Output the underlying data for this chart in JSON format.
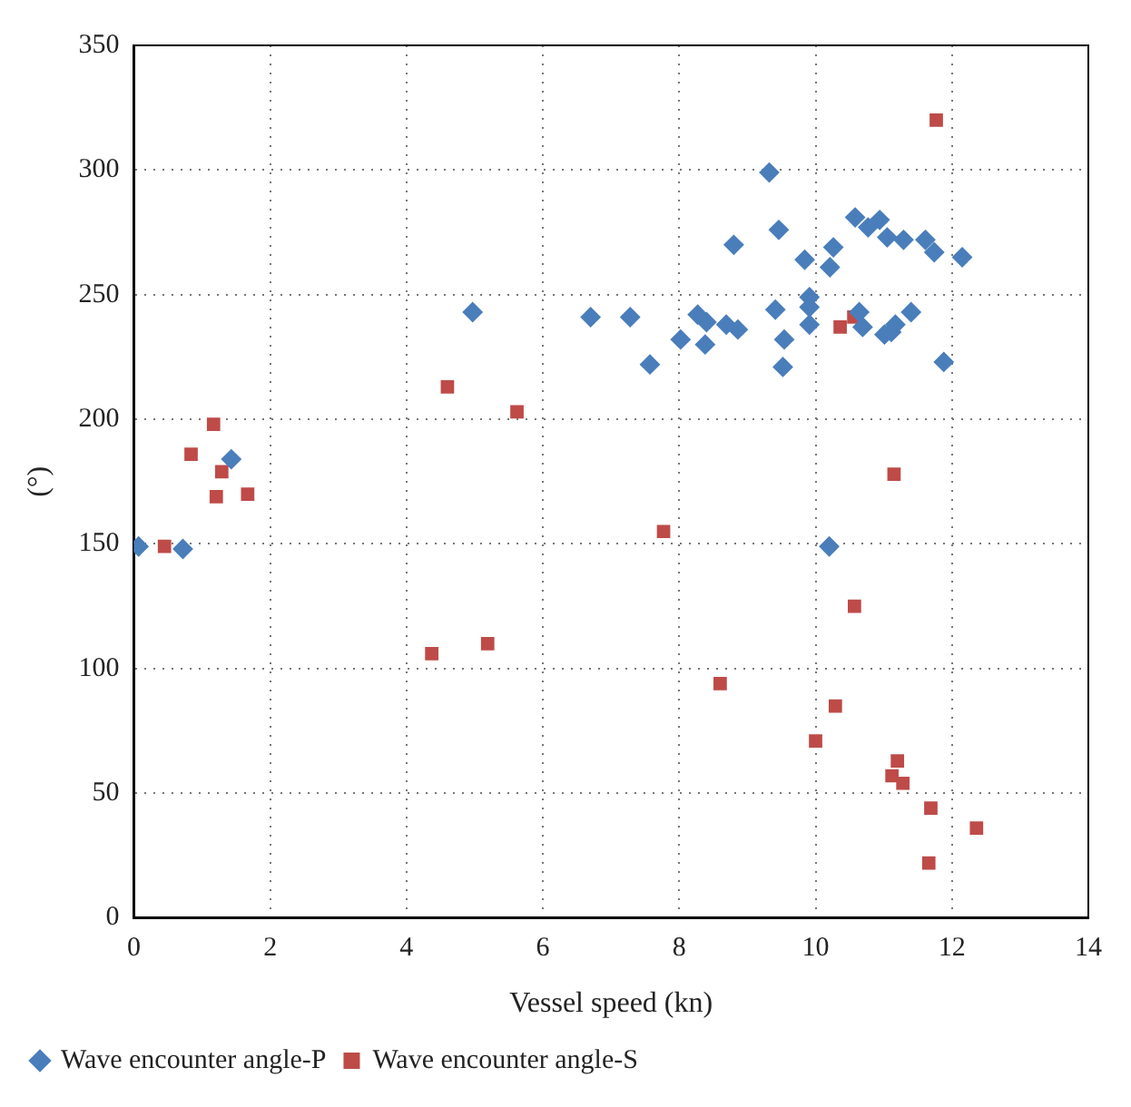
{
  "chart_data": {
    "type": "scatter",
    "xlabel": "Vessel speed (kn)",
    "ylabel": "(°)",
    "xlim": [
      0,
      14
    ],
    "xticks": [
      0,
      2,
      4,
      6,
      8,
      10,
      12,
      14
    ],
    "ylim": [
      0,
      350
    ],
    "yticks": [
      0,
      50,
      100,
      150,
      200,
      250,
      300,
      350
    ],
    "grid": true,
    "legend": "bottom",
    "series": [
      {
        "name": "Wave encounter angle-P",
        "color": "#4a7ebb",
        "marker": "diamond",
        "x": [
          0.07,
          0.72,
          1.43,
          4.97,
          6.7,
          7.28,
          7.57,
          8.02,
          8.27,
          8.4,
          8.38,
          8.69,
          8.8,
          8.86,
          9.32,
          9.41,
          9.46,
          9.52,
          9.54,
          9.84,
          9.91,
          9.91,
          9.91,
          10.21,
          10.26,
          10.2,
          10.58,
          10.64,
          10.69,
          10.73,
          10.77,
          10.94,
          11.01,
          11.05,
          11.11,
          11.17,
          11.29,
          11.4,
          11.61,
          11.74,
          11.88,
          12.15
        ],
        "values": [
          149,
          148,
          184,
          243,
          241,
          241,
          222,
          232,
          242,
          239,
          230,
          238,
          270,
          236,
          299,
          244,
          276,
          221,
          232,
          264,
          249,
          245,
          238,
          261,
          269,
          149,
          281,
          243,
          237,
          null,
          277,
          280,
          234,
          273,
          235,
          238,
          272,
          243,
          272,
          267,
          223,
          265
        ]
      },
      {
        "name": "Wave encounter angle-S",
        "color": "#be4b48",
        "marker": "square",
        "x": [
          0.45,
          0.84,
          1.17,
          1.21,
          1.29,
          1.67,
          4.37,
          4.6,
          5.19,
          5.62,
          7.77,
          8.6,
          10.0,
          10.29,
          10.36,
          10.56,
          10.57,
          11.12,
          11.15,
          11.2,
          11.28,
          11.66,
          11.69,
          11.77,
          12.36
        ],
        "values": [
          149,
          186,
          198,
          169,
          179,
          170,
          106,
          213,
          110,
          203,
          155,
          94,
          71,
          85,
          237,
          241,
          125,
          57,
          178,
          63,
          54,
          22,
          44,
          320,
          36
        ]
      }
    ]
  }
}
